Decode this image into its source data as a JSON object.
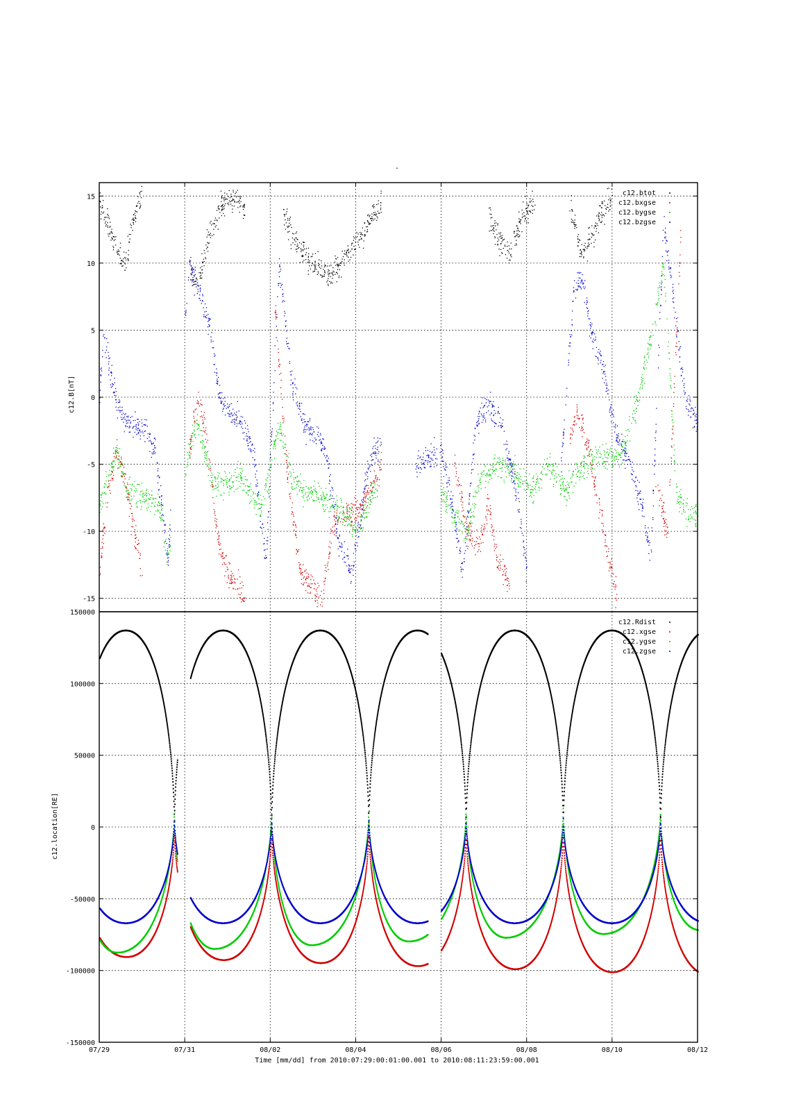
{
  "title": "-",
  "xlabel": "Time [mm/dd]  from 2010:07:29:00:01:00.001  to  2010:08:11:23:59:00.001",
  "colors": {
    "black": "#000000",
    "red": "#d00000",
    "green": "#00cc00",
    "blue": "#0000cc"
  },
  "chart_data": [
    {
      "type": "scatter",
      "ylabel": "c12.B[nT]",
      "ylim": [
        -16,
        16
      ],
      "yticks": [
        -15,
        -10,
        -5,
        0,
        5,
        10,
        15
      ],
      "xlim_days": [
        0,
        14
      ],
      "x_tick_labels": [
        "07/29",
        "07/31",
        "08/02",
        "08/04",
        "08/06",
        "08/08",
        "08/10",
        "08/12"
      ],
      "grid": true,
      "legend_position": "top-right",
      "data_gaps_days": [
        [
          1.67,
          2.0
        ],
        [
          7.9,
          7.96
        ]
      ],
      "series": [
        {
          "name": "c12.btot",
          "color": "#000000",
          "points": [
            [
              0.0,
              14.5
            ],
            [
              0.2,
              13.0
            ],
            [
              0.4,
              11.0
            ],
            [
              0.6,
              10.0
            ],
            [
              0.8,
              13.5
            ],
            [
              1.0,
              15.0
            ],
            [
              2.1,
              9.5
            ],
            [
              2.3,
              8.5
            ],
            [
              2.6,
              12.5
            ],
            [
              2.9,
              14.5
            ],
            [
              3.2,
              15.0
            ],
            [
              3.4,
              14.0
            ],
            [
              4.3,
              13.5
            ],
            [
              4.6,
              11.5
            ],
            [
              5.0,
              10.0
            ],
            [
              5.4,
              9.0
            ],
            [
              6.0,
              11.5
            ],
            [
              6.6,
              14.5
            ],
            [
              7.3,
              14.0
            ],
            [
              9.1,
              13.5
            ],
            [
              9.3,
              12.0
            ],
            [
              9.6,
              10.5
            ],
            [
              9.9,
              13.5
            ],
            [
              10.2,
              15.0
            ],
            [
              11.0,
              14.5
            ],
            [
              11.3,
              10.5
            ],
            [
              11.7,
              13.5
            ],
            [
              12.0,
              15.0
            ]
          ]
        },
        {
          "name": "c12.bxgse",
          "color": "#d00000",
          "points": [
            [
              0.0,
              -13.0
            ],
            [
              0.2,
              -7.0
            ],
            [
              0.4,
              -4.0
            ],
            [
              0.6,
              -6.0
            ],
            [
              0.8,
              -10.0
            ],
            [
              1.0,
              -13.0
            ],
            [
              2.1,
              -4.0
            ],
            [
              2.3,
              0.0
            ],
            [
              2.5,
              -3.0
            ],
            [
              2.8,
              -11.0
            ],
            [
              3.0,
              -13.0
            ],
            [
              3.4,
              -15.0
            ],
            [
              4.1,
              7.0
            ],
            [
              4.4,
              -6.0
            ],
            [
              4.7,
              -13.0
            ],
            [
              5.2,
              -15.0
            ],
            [
              5.5,
              -9.0
            ],
            [
              6.1,
              -8.5
            ],
            [
              6.6,
              -5.0
            ],
            [
              8.3,
              -4.5
            ],
            [
              8.6,
              -10.0
            ],
            [
              8.9,
              -11.0
            ],
            [
              9.1,
              -8.0
            ],
            [
              9.3,
              -12.0
            ],
            [
              9.6,
              -14.0
            ],
            [
              11.0,
              -3.0
            ],
            [
              11.2,
              -1.0
            ],
            [
              11.5,
              -5.0
            ],
            [
              11.8,
              -10.0
            ],
            [
              12.1,
              -15.0
            ],
            [
              13.0,
              -6.0
            ],
            [
              13.3,
              -10.0
            ],
            [
              13.6,
              12.0
            ]
          ]
        },
        {
          "name": "c12.bygse",
          "color": "#00cc00",
          "points": [
            [
              0.0,
              -8.0
            ],
            [
              0.2,
              -6.0
            ],
            [
              0.4,
              -4.0
            ],
            [
              0.6,
              -6.5
            ],
            [
              0.8,
              -7.0
            ],
            [
              1.1,
              -7.5
            ],
            [
              1.4,
              -8.0
            ],
            [
              1.6,
              -12.0
            ],
            [
              2.1,
              -4.0
            ],
            [
              2.3,
              -2.0
            ],
            [
              2.6,
              -6.0
            ],
            [
              2.9,
              -6.5
            ],
            [
              3.3,
              -6.0
            ],
            [
              3.6,
              -7.5
            ],
            [
              3.8,
              -8.0
            ],
            [
              4.2,
              -2.0
            ],
            [
              4.5,
              -6.0
            ],
            [
              4.8,
              -7.0
            ],
            [
              5.2,
              -7.5
            ],
            [
              5.5,
              -8.0
            ],
            [
              6.0,
              -10.0
            ],
            [
              6.5,
              -6.5
            ],
            [
              7.3,
              -5.0
            ],
            [
              8.0,
              -7.0
            ],
            [
              8.3,
              -9.0
            ],
            [
              8.6,
              -10.0
            ],
            [
              8.9,
              -6.0
            ],
            [
              9.3,
              -5.0
            ],
            [
              9.7,
              -5.5
            ],
            [
              10.1,
              -7.0
            ],
            [
              10.5,
              -5.0
            ],
            [
              10.9,
              -7.0
            ],
            [
              11.3,
              -5.0
            ],
            [
              11.7,
              -4.5
            ],
            [
              12.2,
              -4.5
            ],
            [
              12.6,
              0.0
            ],
            [
              13.0,
              6.0
            ],
            [
              13.2,
              10.0
            ],
            [
              13.5,
              -7.0
            ],
            [
              13.8,
              -9.0
            ],
            [
              14.0,
              -8.5
            ]
          ]
        },
        {
          "name": "c12.bzgse",
          "color": "#0000cc",
          "points": [
            [
              0.0,
              0.0
            ],
            [
              0.1,
              5.0
            ],
            [
              0.3,
              1.0
            ],
            [
              0.5,
              -1.5
            ],
            [
              0.8,
              -2.0
            ],
            [
              1.1,
              -2.5
            ],
            [
              1.3,
              -4.0
            ],
            [
              1.5,
              -9.0
            ],
            [
              1.6,
              -12.0
            ],
            [
              2.1,
              10.0
            ],
            [
              2.3,
              8.0
            ],
            [
              2.6,
              5.0
            ],
            [
              2.8,
              0.0
            ],
            [
              3.0,
              -1.0
            ],
            [
              3.3,
              -1.5
            ],
            [
              3.6,
              -4.0
            ],
            [
              3.8,
              -10.0
            ],
            [
              3.9,
              -12.0
            ],
            [
              4.2,
              10.0
            ],
            [
              4.5,
              1.0
            ],
            [
              4.8,
              -2.0
            ],
            [
              5.1,
              -3.0
            ],
            [
              5.3,
              -4.0
            ],
            [
              5.6,
              -11.0
            ],
            [
              5.9,
              -13.0
            ],
            [
              6.3,
              -5.0
            ],
            [
              6.6,
              -3.0
            ],
            [
              7.4,
              -5.0
            ],
            [
              8.0,
              -4.0
            ],
            [
              8.2,
              -7.0
            ],
            [
              8.5,
              -13.0
            ],
            [
              8.8,
              -2.0
            ],
            [
              9.1,
              -0.5
            ],
            [
              9.4,
              -2.0
            ],
            [
              9.8,
              -8.0
            ],
            [
              10.0,
              -13.0
            ],
            [
              10.8,
              -5.0
            ],
            [
              11.1,
              8.0
            ],
            [
              11.3,
              9.0
            ],
            [
              11.5,
              5.0
            ],
            [
              11.8,
              2.0
            ],
            [
              12.1,
              -3.0
            ],
            [
              12.4,
              -5.0
            ],
            [
              12.7,
              -8.0
            ],
            [
              12.9,
              -12.0
            ],
            [
              13.2,
              13.0
            ],
            [
              13.4,
              8.0
            ],
            [
              13.7,
              0.0
            ],
            [
              14.0,
              -2.0
            ]
          ]
        }
      ]
    },
    {
      "type": "scatter",
      "ylabel": "c12.location[RE]",
      "ylim": [
        -150000,
        150000
      ],
      "yticks": [
        -150000,
        -100000,
        -50000,
        0,
        50000,
        100000,
        150000
      ],
      "xlim_days": [
        0,
        14
      ],
      "x_tick_labels": [
        "07/29",
        "07/31",
        "08/02",
        "08/04",
        "08/06",
        "08/08",
        "08/10",
        "08/12"
      ],
      "grid": true,
      "legend_position": "top-right",
      "data_gaps_days": [
        [
          1.82,
          2.12
        ],
        [
          7.68,
          7.99
        ]
      ],
      "orbit_period_days": 2.275,
      "perigee_time_days": 4.02,
      "series": [
        {
          "name": "c12.Rdist",
          "color": "#000000",
          "perigee": 0,
          "apogee": 137000
        },
        {
          "name": "c12.xgse",
          "color": "#d00000",
          "perigee": 0,
          "apogee_start": -90000,
          "apogee_end": -103000,
          "phase": 0.5
        },
        {
          "name": "c12.ygse",
          "color": "#00cc00",
          "perigee": 13000,
          "apogee_start": -88000,
          "apogee_end": -72000,
          "phase": 0.42
        },
        {
          "name": "c12.zgse",
          "color": "#0000cc",
          "perigee": 6000,
          "apogee": -67000,
          "phase": 0.5
        }
      ]
    }
  ]
}
